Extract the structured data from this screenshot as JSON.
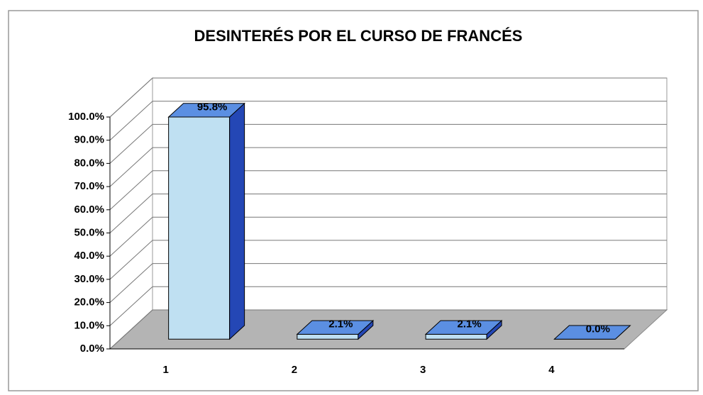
{
  "chart_data": {
    "type": "bar3d",
    "title": "DESINTERÉS POR EL CURSO DE FRANCÉS",
    "categories": [
      "1",
      "2",
      "3",
      "4"
    ],
    "values": [
      95.8,
      2.1,
      2.1,
      0.0
    ],
    "value_labels": [
      "95.8%",
      "2.1%",
      "2.1%",
      "0.0%"
    ],
    "color": "#bfe0f2",
    "ylim": [
      0,
      100
    ],
    "yticks": [
      {
        "value": 0,
        "label": "0.0%"
      },
      {
        "value": 10,
        "label": "10.0%"
      },
      {
        "value": 20,
        "label": "20.0%"
      },
      {
        "value": 30,
        "label": "30.0%"
      },
      {
        "value": 40,
        "label": "40.0%"
      },
      {
        "value": 50,
        "label": "50.0%"
      },
      {
        "value": 60,
        "label": "60.0%"
      },
      {
        "value": 70,
        "label": "70.0%"
      },
      {
        "value": 80,
        "label": "80.0%"
      },
      {
        "value": 90,
        "label": "90.0%"
      },
      {
        "value": 100,
        "label": "100.0%"
      }
    ],
    "grid": true
  }
}
